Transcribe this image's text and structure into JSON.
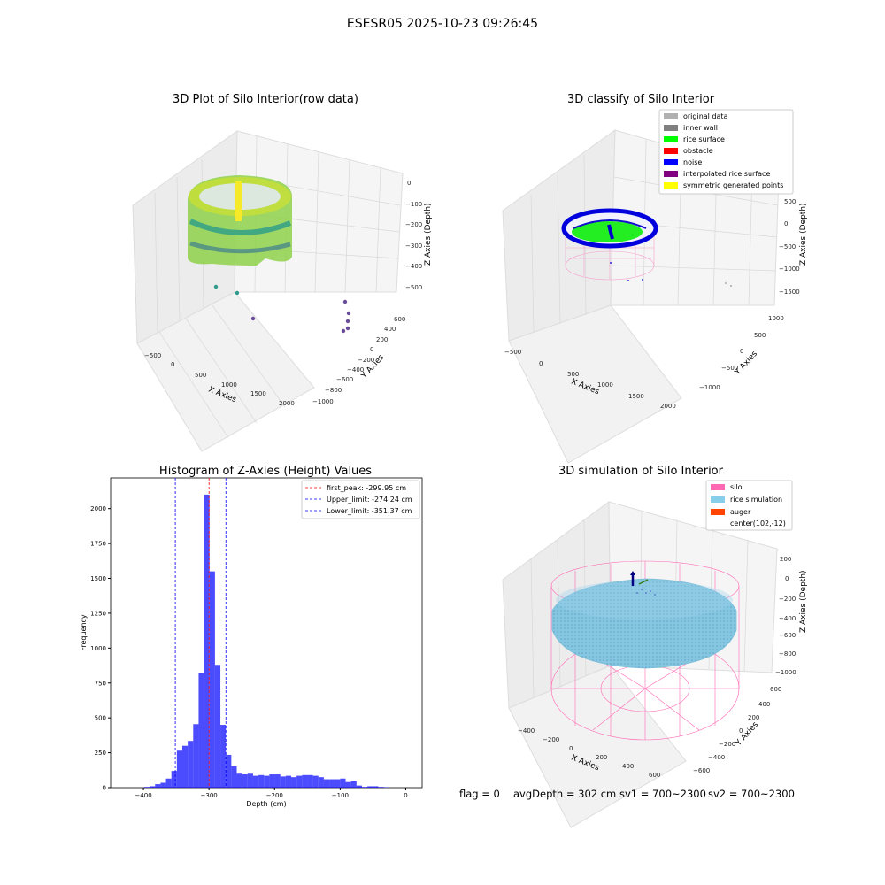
{
  "figure_title": "ESESR05 2025-10-23 09:26:45",
  "chart_data": [
    {
      "type": "scatter",
      "title": "3D Plot of Silo Interior(row data)",
      "xlabel": "X Axies",
      "ylabel": "Y Axies",
      "zlabel": "Z Axies (Depth)",
      "xticks": [
        "−500",
        "0",
        "500",
        "1000",
        "1500",
        "2000"
      ],
      "yticks": [
        "−1000",
        "−800",
        "−600",
        "−400",
        "−200",
        "0",
        "200",
        "400",
        "600"
      ],
      "zticks": [
        "0",
        "−100",
        "−200",
        "−300",
        "−400",
        "−500"
      ],
      "xlim": [
        -600,
        2100
      ],
      "ylim": [
        -1000,
        700
      ],
      "zlim": [
        -580,
        20
      ],
      "colormap": "viridis",
      "outlier_points": [
        {
          "x": 0,
          "y": -450,
          "z": -520
        },
        {
          "x": 150,
          "y": -400,
          "z": -540
        },
        {
          "x": 300,
          "y": -300,
          "z": -560
        },
        {
          "x": 1400,
          "y": -100,
          "z": -560
        },
        {
          "x": 1450,
          "y": -50,
          "z": -530
        },
        {
          "x": 1480,
          "y": 0,
          "z": -500
        },
        {
          "x": 1500,
          "y": 50,
          "z": -480
        }
      ]
    },
    {
      "type": "scatter",
      "title": "3D classify of Silo Interior",
      "xlabel": "X Axies",
      "ylabel": "Y Axies",
      "zlabel": "Z Axies (Depth)",
      "xticks": [
        "−500",
        "0",
        "500",
        "1000",
        "1500",
        "2000"
      ],
      "yticks": [
        "−1000",
        "−500",
        "0",
        "500",
        "1000"
      ],
      "zticks": [
        "500",
        "0",
        "−500",
        "−1000",
        "−1500"
      ],
      "legend_position": "top-right",
      "legend": [
        {
          "label": "original data",
          "color": "#b0b0b0"
        },
        {
          "label": "inner wall",
          "color": "#808080"
        },
        {
          "label": "rice surface",
          "color": "#00ff00"
        },
        {
          "label": "obstacle",
          "color": "#ff0000"
        },
        {
          "label": "noise",
          "color": "#0000ff"
        },
        {
          "label": "interpolated rice surface",
          "color": "#800080"
        },
        {
          "label": "symmetric generated points",
          "color": "#ffff00"
        }
      ]
    },
    {
      "type": "bar",
      "title": "Histogram of Z-Axies (Height) Values",
      "xlabel": "Depth (cm)",
      "ylabel": "Frequency",
      "xlim": [
        -450,
        25
      ],
      "ylim": [
        0,
        2220
      ],
      "xticks": [
        -400,
        -300,
        -200,
        -100,
        0
      ],
      "xtick_labels": [
        "−400",
        "−300",
        "−200",
        "−100",
        "0"
      ],
      "yticks": [
        0,
        250,
        500,
        750,
        1000,
        1250,
        1500,
        1750,
        2000
      ],
      "bar_color": "#0000ff",
      "bin_width": 8.3,
      "bin_starts": [
        -432,
        -423.7,
        -415.4,
        -407.1,
        -398.8,
        -390.5,
        -382.2,
        -373.9,
        -365.6,
        -357.3,
        -349,
        -340.7,
        -332.4,
        -324.1,
        -315.8,
        -307.5,
        -299.2,
        -290.9,
        -282.6,
        -274.3,
        -266,
        -257.7,
        -249.4,
        -241.1,
        -232.8,
        -224.5,
        -216.2,
        -207.9,
        -199.6,
        -191.3,
        -183,
        -174.7,
        -166.4,
        -158.1,
        -149.8,
        -141.5,
        -133.2,
        -124.9,
        -116.6,
        -108.3,
        -100,
        -91.7,
        -83.4,
        -75.1,
        -66.8,
        -58.5,
        -50.2,
        -41.9,
        -33.6,
        -25.3,
        -17,
        -8.7
      ],
      "values": [
        0,
        0,
        0,
        0,
        5,
        10,
        25,
        35,
        65,
        120,
        265,
        300,
        335,
        455,
        820,
        2100,
        1550,
        880,
        450,
        235,
        155,
        100,
        95,
        100,
        85,
        90,
        85,
        95,
        95,
        80,
        85,
        75,
        85,
        90,
        90,
        85,
        75,
        60,
        60,
        60,
        65,
        40,
        45,
        15,
        5,
        10,
        10,
        5,
        3,
        0,
        0,
        0
      ],
      "legend_position": "top-right",
      "lines": [
        {
          "label": "first_peak: -299.95 cm",
          "x": -299.95,
          "color": "#ff0000",
          "style": "dashed"
        },
        {
          "label": "Upper_limit: -274.24 cm",
          "x": -274.24,
          "color": "#0000ff",
          "style": "dashed"
        },
        {
          "label": "Lower_limit: -351.37 cm",
          "x": -351.37,
          "color": "#0000ff",
          "style": "dashed"
        }
      ]
    },
    {
      "type": "scatter",
      "title": "3D simulation of Silo Interior",
      "xlabel": "X Axies",
      "ylabel": "Y Axies",
      "zlabel": "Z Axies (Depth)",
      "xticks": [
        "−400",
        "−200",
        "0",
        "200",
        "400",
        "600"
      ],
      "yticks": [
        "−600",
        "−400",
        "−200",
        "0",
        "200",
        "400",
        "600"
      ],
      "zticks": [
        "200",
        "0",
        "−200",
        "−400",
        "−600",
        "−800",
        "−1000"
      ],
      "legend_position": "top-right",
      "legend": [
        {
          "label": "silo",
          "color": "#ff69b4"
        },
        {
          "label": "rice simulation",
          "color": "#87ceeb"
        },
        {
          "label": "auger",
          "color": "#ff4500"
        },
        {
          "label": "center(102,-12)",
          "color": ""
        }
      ]
    }
  ],
  "status_line": {
    "flag": "flag = 0",
    "avg_depth": "avgDepth = 302 cm",
    "sv1": "sv1 = 700~2300",
    "sv2": "sv2 = 700~2300"
  },
  "colors": {
    "silo": "#ff69b4",
    "rice": "#87ceeb",
    "surface": "#00ff00",
    "noise": "#0000ff",
    "axis_pane": "#f2f2f2",
    "grid": "#d8d8d8"
  }
}
